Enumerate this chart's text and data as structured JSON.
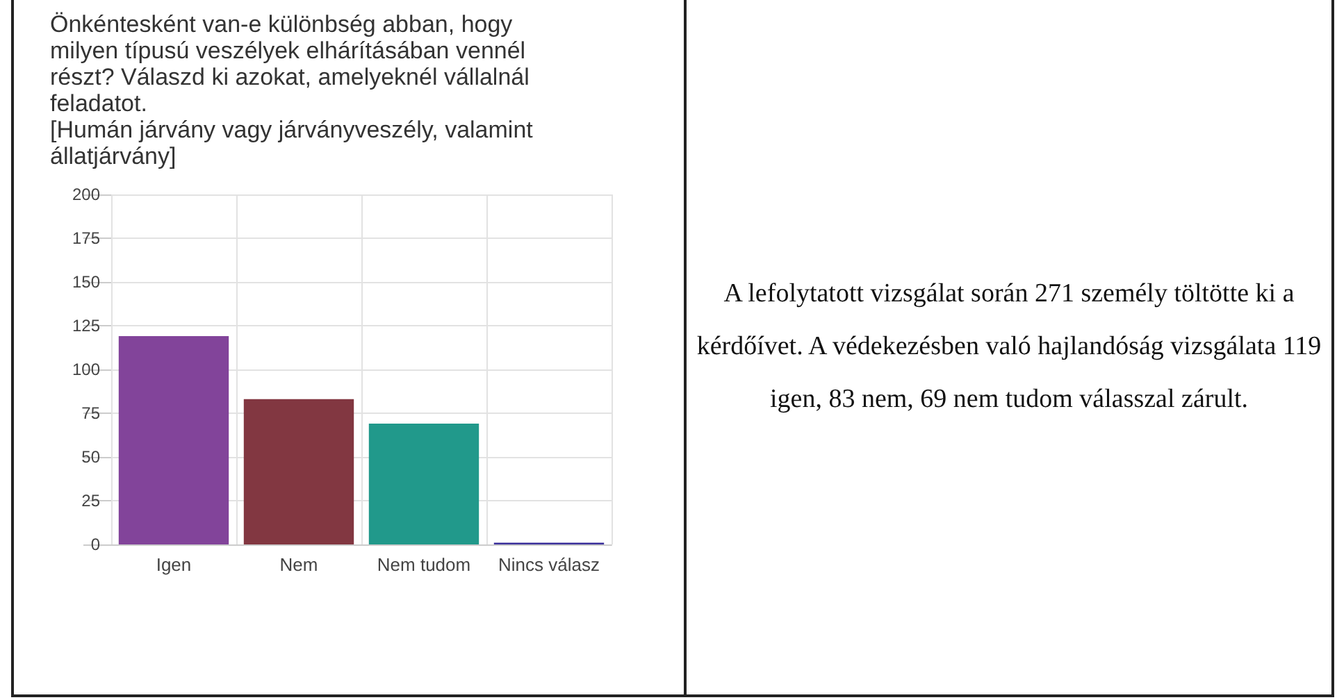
{
  "chart_data": {
    "type": "bar",
    "title": "Önkéntesként van-e különbség abban, hogy milyen típusú veszélyek elhárításában vennél részt? Válaszd ki azokat, amelyeknél vállalnál feladatot.",
    "subtitle": "[Humán járvány vagy járványveszély, valamint állatjárvány]",
    "categories": [
      "Igen",
      "Nem",
      "Nem tudom",
      "Nincs válasz"
    ],
    "values": [
      119,
      83,
      69,
      1
    ],
    "colors": [
      "#82449a",
      "#823741",
      "#21998b",
      "#3a2f9a"
    ],
    "ylim": [
      0,
      200
    ],
    "yticks": [
      0,
      25,
      50,
      75,
      100,
      125,
      150,
      175,
      200
    ],
    "grid": true,
    "annotations": [
      "A lefolytatott vizsgálat során 271 személy töltötte ki a kérdőívet. A védekezésben való hajlandóság vizsgálata 119 igen, 83 nem, 69 nem tudom válasszal zárult."
    ]
  }
}
